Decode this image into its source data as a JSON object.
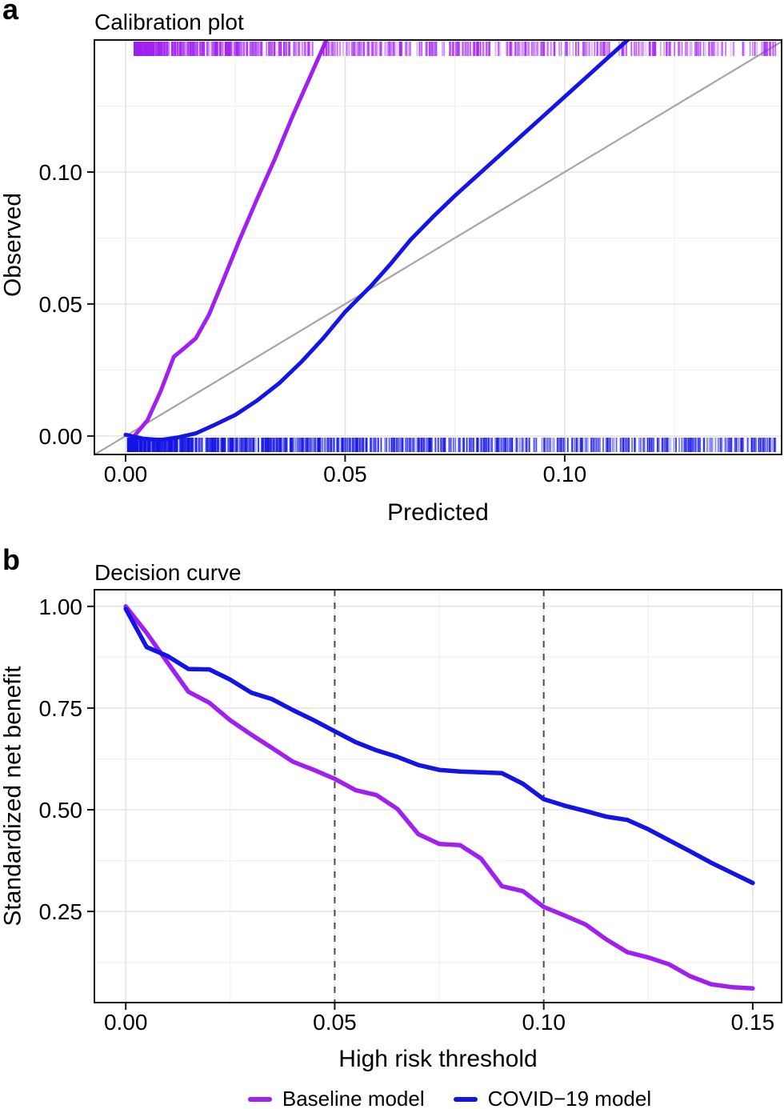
{
  "figure": {
    "legend": [
      {
        "label": "Baseline model",
        "color": "#A020F0"
      },
      {
        "label": "COVID−19 model",
        "color": "#1414E6"
      }
    ],
    "colors": {
      "baseline": "#A020F0",
      "covid": "#1414E6",
      "identity_line": "#A5A5A5",
      "reference_dashed": "#4C4C4C",
      "grid_major": "#E5E5E5",
      "grid_minor": "#F1F1F1",
      "border": "#141414",
      "text": "#000000"
    }
  },
  "chart_data": [
    {
      "type": "line",
      "panel_label": "a",
      "title": "Calibration plot",
      "xlabel": "Predicted",
      "ylabel": "Observed",
      "xlim": [
        -0.0071,
        0.1494
      ],
      "ylim": [
        -0.007,
        0.15
      ],
      "grid": true,
      "legend_position": "bottom",
      "x_ticks": [
        {
          "v": 0,
          "label": "0.00"
        },
        {
          "v": 0.05,
          "label": "0.05"
        },
        {
          "v": 0.1,
          "label": "0.10"
        }
      ],
      "y_ticks": [
        {
          "v": 0,
          "label": "0.00"
        },
        {
          "v": 0.05,
          "label": "0.05"
        },
        {
          "v": 0.1,
          "label": "0.10"
        }
      ],
      "x_minor": [
        0.025,
        0.075,
        0.125
      ],
      "y_minor": [
        0.025,
        0.075,
        0.125
      ],
      "identity_line": true,
      "series": [
        {
          "name": "Baseline model",
          "color": "#A020F0",
          "x": [
            0.002,
            0.005,
            0.008,
            0.011,
            0.0135,
            0.016,
            0.019,
            0.022,
            0.026,
            0.03,
            0.034,
            0.038,
            0.042,
            0.046
          ],
          "y": [
            0.0,
            0.006,
            0.017,
            0.03,
            0.0335,
            0.037,
            0.046,
            0.058,
            0.0745,
            0.09,
            0.105,
            0.121,
            0.136,
            0.151
          ]
        },
        {
          "name": "COVID−19 model",
          "color": "#1414E6",
          "x": [
            0.0,
            0.004,
            0.008,
            0.012,
            0.016,
            0.02,
            0.025,
            0.03,
            0.035,
            0.04,
            0.045,
            0.05,
            0.056,
            0.06,
            0.065,
            0.07,
            0.075,
            0.08,
            0.085,
            0.09,
            0.095,
            0.1,
            0.105,
            0.11,
            0.115
          ],
          "y": [
            0.0005,
            -0.001,
            -0.0015,
            -0.0005,
            0.001,
            0.004,
            0.008,
            0.0135,
            0.02,
            0.028,
            0.037,
            0.047,
            0.057,
            0.0645,
            0.0745,
            0.083,
            0.091,
            0.0985,
            0.106,
            0.1135,
            0.121,
            0.1285,
            0.136,
            0.1435,
            0.151
          ]
        }
      ],
      "rugs": [
        {
          "side": "top",
          "color": "#A020F0",
          "count": 820,
          "seed": 7,
          "min": 0.002,
          "max": 0.1485,
          "skew": 2.1
        },
        {
          "side": "bottom",
          "color": "#1414E6",
          "count": 1150,
          "seed": 13,
          "min": 0.0005,
          "max": 0.1485,
          "skew": 1.8
        }
      ]
    },
    {
      "type": "line",
      "panel_label": "b",
      "title": "Decision curve",
      "xlabel": "High risk threshold",
      "ylabel": "Standardized net benefit",
      "xlim": [
        -0.0075,
        0.1569
      ],
      "ylim": [
        0.026,
        1.041
      ],
      "grid": true,
      "x_ticks": [
        {
          "v": 0,
          "label": "0.00"
        },
        {
          "v": 0.05,
          "label": "0.05"
        },
        {
          "v": 0.1,
          "label": "0.10"
        },
        {
          "v": 0.15,
          "label": "0.15"
        }
      ],
      "y_ticks": [
        {
          "v": 0.25,
          "label": "0.25"
        },
        {
          "v": 0.5,
          "label": "0.50"
        },
        {
          "v": 0.75,
          "label": "0.75"
        },
        {
          "v": 1,
          "label": "1.00"
        }
      ],
      "x_minor": [
        0.025,
        0.075,
        0.125
      ],
      "y_minor": [
        0.125,
        0.375,
        0.625,
        0.875
      ],
      "reference_lines": [
        {
          "x": 0.05,
          "style": "dashed"
        },
        {
          "x": 0.1,
          "style": "dashed"
        }
      ],
      "x": [
        0,
        0.005,
        0.01,
        0.015,
        0.02,
        0.025,
        0.03,
        0.035,
        0.04,
        0.045,
        0.05,
        0.055,
        0.06,
        0.065,
        0.07,
        0.075,
        0.08,
        0.085,
        0.09,
        0.095,
        0.1,
        0.105,
        0.11,
        0.115,
        0.12,
        0.125,
        0.13,
        0.135,
        0.14,
        0.145,
        0.15
      ],
      "series": [
        {
          "name": "Baseline model",
          "color": "#A020F0",
          "values": [
            1.0,
            0.935,
            0.862,
            0.79,
            0.763,
            0.72,
            0.685,
            0.652,
            0.618,
            0.598,
            0.576,
            0.548,
            0.536,
            0.502,
            0.44,
            0.416,
            0.413,
            0.38,
            0.312,
            0.3,
            0.261,
            0.24,
            0.218,
            0.181,
            0.15,
            0.137,
            0.12,
            0.091,
            0.071,
            0.064,
            0.061
          ]
        },
        {
          "name": "COVID−19 model",
          "color": "#1414E6",
          "values": [
            0.994,
            0.9,
            0.878,
            0.846,
            0.845,
            0.82,
            0.788,
            0.772,
            0.745,
            0.72,
            0.693,
            0.666,
            0.646,
            0.63,
            0.61,
            0.598,
            0.594,
            0.592,
            0.59,
            0.564,
            0.526,
            0.51,
            0.497,
            0.483,
            0.475,
            0.452,
            0.425,
            0.398,
            0.37,
            0.345,
            0.32
          ]
        }
      ]
    }
  ]
}
